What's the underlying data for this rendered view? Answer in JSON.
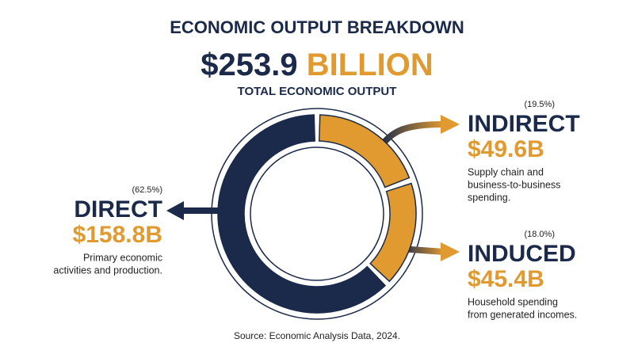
{
  "chart_data": {
    "type": "donut",
    "title": "ECONOMIC OUTPUT BREAKDOWN",
    "total_amount": "$253.9",
    "total_unit": "BILLION",
    "subtitle": "TOTAL ECONOMIC OUTPUT",
    "categories": [
      "DIRECT",
      "INDIRECT",
      "INDUCED"
    ],
    "values": [
      158.8,
      49.6,
      45.4
    ],
    "value_labels": [
      "$158.8B",
      "$49.6B",
      "$45.4B"
    ],
    "shares": [
      62.5,
      19.5,
      18.0
    ],
    "share_labels": [
      "(62.5%)",
      "(19.5%)",
      "(18.0%)"
    ],
    "descriptions": [
      [
        "Primary economic",
        "activities and production."
      ],
      [
        "Supply chain and",
        "business-to-business",
        "spending."
      ],
      [
        "Household spending",
        "from generated incomes."
      ]
    ],
    "colors": [
      "#1b2a4a",
      "#e09a30",
      "#e09a30"
    ],
    "source": "Source: Economic Analysis Data, 2024."
  }
}
